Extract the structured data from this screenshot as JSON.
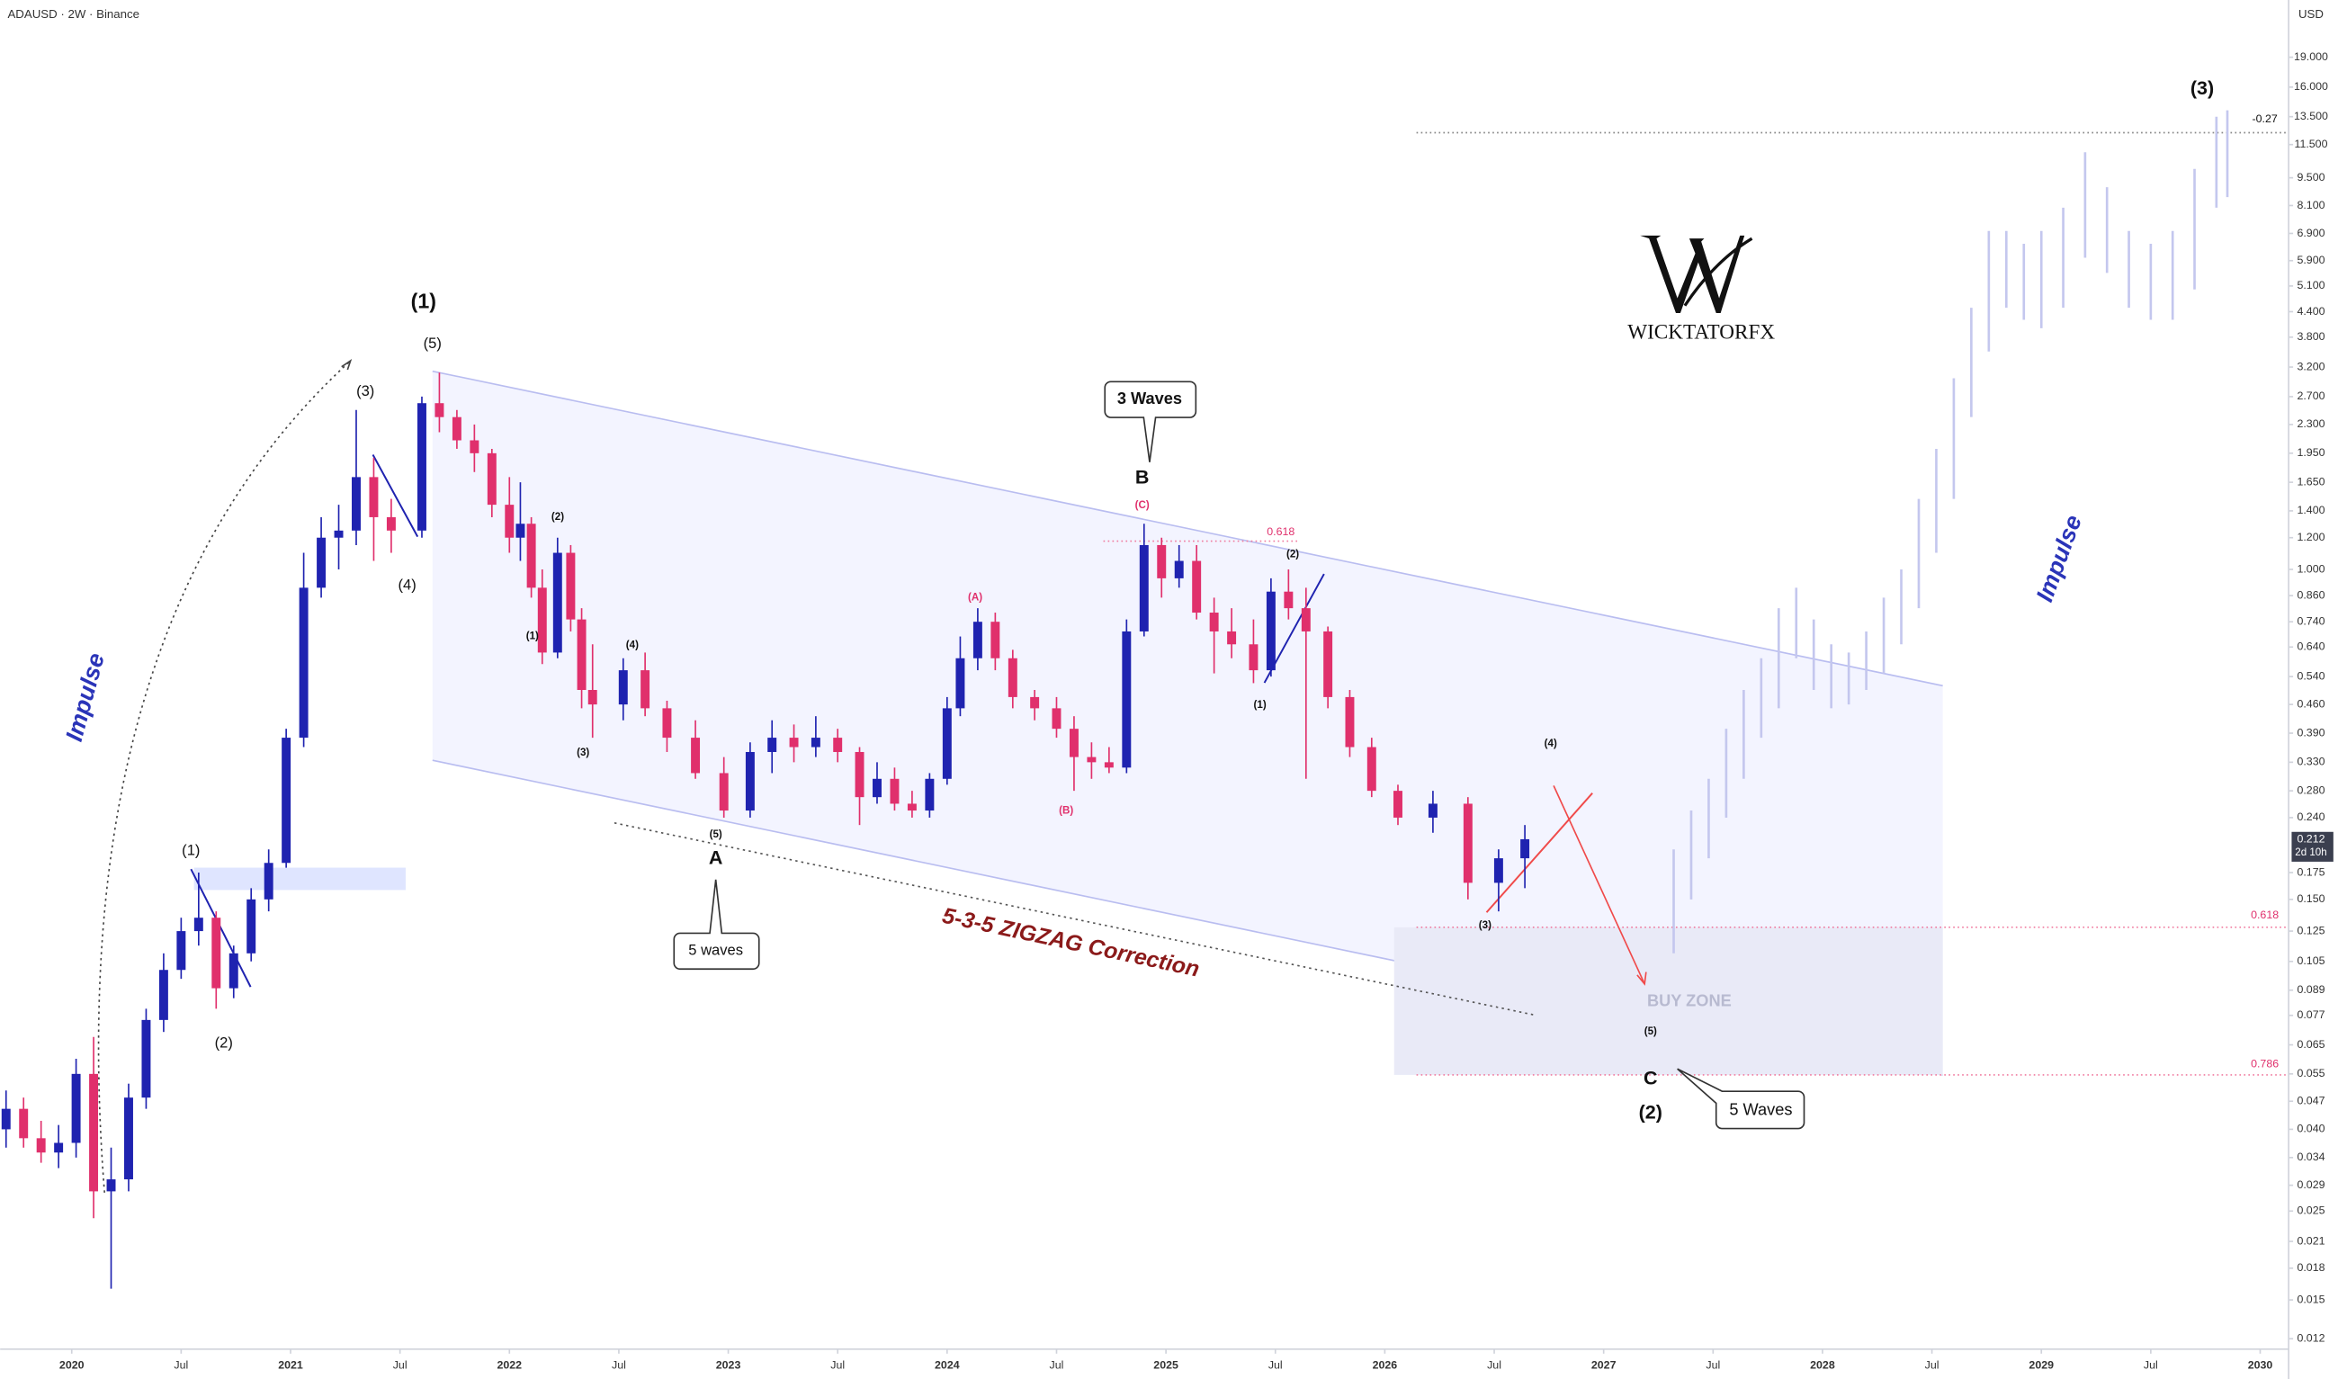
{
  "header": {
    "symbol": "ADAUSD · 2W · Binance",
    "currency": "USD",
    "last_price": "0.212",
    "countdown": "2d 10h"
  },
  "chart_data": {
    "type": "candlestick",
    "log_scale": true,
    "grid": false,
    "up_color": "#1f23b0",
    "down_color": "#e0306c",
    "xlim": [
      2019.673,
      2030.13
    ],
    "ylim": [
      0.0113,
      26.4
    ],
    "xticks": [
      2020,
      {
        "value": 2020.5,
        "label": "Jul"
      },
      2021,
      {
        "value": 2021.5,
        "label": "Jul"
      },
      2022,
      {
        "value": 2022.5,
        "label": "Jul"
      },
      2023,
      {
        "value": 2023.5,
        "label": "Jul"
      },
      2024,
      {
        "value": 2024.5,
        "label": "Jul"
      },
      2025,
      {
        "value": 2025.5,
        "label": "Jul"
      },
      2026,
      {
        "value": 2026.5,
        "label": "Jul"
      },
      2027,
      {
        "value": 2027.5,
        "label": "Jul"
      },
      2028,
      {
        "value": 2028.5,
        "label": "Jul"
      },
      2029,
      {
        "value": 2029.5,
        "label": "Jul"
      },
      2030
    ],
    "yticks": [
      {
        "value": 19,
        "label": "19.000"
      },
      {
        "value": 16,
        "label": "16.000"
      },
      {
        "value": 13.5,
        "label": "13.500"
      },
      {
        "value": 11.5,
        "label": "11.500"
      },
      {
        "value": 9.5,
        "label": "9.500"
      },
      {
        "value": 8.1,
        "label": "8.100"
      },
      {
        "value": 6.9,
        "label": "6.900"
      },
      {
        "value": 5.9,
        "label": "5.900"
      },
      {
        "value": 5.1,
        "label": "5.100"
      },
      {
        "value": 4.4,
        "label": "4.400"
      },
      {
        "value": 3.8,
        "label": "3.800"
      },
      {
        "value": 3.2,
        "label": "3.200"
      },
      {
        "value": 2.7,
        "label": "2.700"
      },
      {
        "value": 2.3,
        "label": "2.300"
      },
      {
        "value": 1.95,
        "label": "1.950"
      },
      {
        "value": 1.65,
        "label": "1.650"
      },
      {
        "value": 1.4,
        "label": "1.400"
      },
      {
        "value": 1.2,
        "label": "1.200"
      },
      {
        "value": 1,
        "label": "1.000"
      },
      {
        "value": 0.86,
        "label": "0.860"
      },
      {
        "value": 0.74,
        "label": "0.740"
      },
      {
        "value": 0.64,
        "label": "0.640"
      },
      {
        "value": 0.54,
        "label": "0.540"
      },
      {
        "value": 0.46,
        "label": "0.460"
      },
      {
        "value": 0.39,
        "label": "0.390"
      },
      {
        "value": 0.33,
        "label": "0.330"
      },
      {
        "value": 0.28,
        "label": "0.280"
      },
      {
        "value": 0.24,
        "label": "0.240"
      },
      0.175,
      {
        "value": 0.15,
        "label": "0.150"
      },
      0.125,
      0.105,
      0.089,
      0.077,
      0.065,
      0.055,
      0.047,
      {
        "value": 0.04,
        "label": "0.040"
      },
      0.034,
      0.029,
      0.025,
      0.021,
      0.018,
      0.015,
      0.012
    ],
    "x": [
      2019.7,
      2019.78,
      2019.86,
      2019.94,
      2020.02,
      2020.1,
      2020.18,
      2020.26,
      2020.34,
      2020.42,
      2020.5,
      2020.58,
      2020.66,
      2020.74,
      2020.82,
      2020.9,
      2020.98,
      2021.06,
      2021.14,
      2021.22,
      2021.3,
      2021.38,
      2021.46,
      2021.6,
      2021.68,
      2021.76,
      2021.84,
      2021.92,
      2022.0,
      2022.05,
      2022.1,
      2022.15,
      2022.22,
      2022.28,
      2022.33,
      2022.38,
      2022.52,
      2022.62,
      2022.72,
      2022.85,
      2022.98,
      2023.1,
      2023.2,
      2023.3,
      2023.4,
      2023.5,
      2023.6,
      2023.68,
      2023.76,
      2023.84,
      2023.92,
      2024.0,
      2024.06,
      2024.14,
      2024.22,
      2024.3,
      2024.4,
      2024.5,
      2024.58,
      2024.66,
      2024.74,
      2024.82,
      2024.9,
      2024.98,
      2025.06,
      2025.14,
      2025.22,
      2025.3,
      2025.4,
      2025.48,
      2025.56,
      2025.64,
      2025.74,
      2025.84,
      2025.94,
      2026.06,
      2026.22,
      2026.38,
      2026.52,
      2026.64
    ],
    "open": [
      0.04,
      0.045,
      0.038,
      0.035,
      0.037,
      0.055,
      0.028,
      0.03,
      0.048,
      0.075,
      0.1,
      0.125,
      0.135,
      0.09,
      0.11,
      0.15,
      0.185,
      0.38,
      0.9,
      1.2,
      1.25,
      1.7,
      1.35,
      1.25,
      2.6,
      2.4,
      2.1,
      1.95,
      1.45,
      1.2,
      1.3,
      0.9,
      0.62,
      1.1,
      0.75,
      0.5,
      0.46,
      0.56,
      0.45,
      0.38,
      0.31,
      0.25,
      0.35,
      0.38,
      0.36,
      0.38,
      0.35,
      0.27,
      0.3,
      0.26,
      0.25,
      0.3,
      0.45,
      0.6,
      0.74,
      0.6,
      0.48,
      0.45,
      0.4,
      0.34,
      0.33,
      0.32,
      0.7,
      1.15,
      0.95,
      1.05,
      0.78,
      0.7,
      0.65,
      0.56,
      0.88,
      0.8,
      0.7,
      0.48,
      0.36,
      0.28,
      0.24,
      0.26,
      0.165,
      0.19
    ],
    "high": [
      0.05,
      0.048,
      0.042,
      0.041,
      0.06,
      0.068,
      0.036,
      0.052,
      0.08,
      0.11,
      0.135,
      0.175,
      0.14,
      0.115,
      0.16,
      0.2,
      0.4,
      1.1,
      1.35,
      1.45,
      2.5,
      1.9,
      1.5,
      2.7,
      3.1,
      2.5,
      2.3,
      2.0,
      1.7,
      1.65,
      1.35,
      1.0,
      1.2,
      1.15,
      0.8,
      0.65,
      0.6,
      0.62,
      0.47,
      0.42,
      0.34,
      0.37,
      0.42,
      0.41,
      0.43,
      0.4,
      0.36,
      0.33,
      0.32,
      0.28,
      0.31,
      0.48,
      0.68,
      0.8,
      0.78,
      0.63,
      0.5,
      0.48,
      0.43,
      0.37,
      0.36,
      0.75,
      1.3,
      1.2,
      1.15,
      1.15,
      0.85,
      0.8,
      0.75,
      0.95,
      1.0,
      0.9,
      0.72,
      0.5,
      0.38,
      0.29,
      0.28,
      0.27,
      0.2,
      0.23
    ],
    "low": [
      0.036,
      0.036,
      0.033,
      0.032,
      0.034,
      0.024,
      0.016,
      0.028,
      0.045,
      0.07,
      0.095,
      0.115,
      0.08,
      0.085,
      0.105,
      0.14,
      0.18,
      0.36,
      0.85,
      1.0,
      1.15,
      1.05,
      1.1,
      1.2,
      2.2,
      2.0,
      1.75,
      1.35,
      1.1,
      1.05,
      0.85,
      0.58,
      0.6,
      0.7,
      0.45,
      0.38,
      0.42,
      0.43,
      0.35,
      0.3,
      0.24,
      0.24,
      0.31,
      0.33,
      0.34,
      0.33,
      0.23,
      0.26,
      0.25,
      0.24,
      0.24,
      0.29,
      0.43,
      0.56,
      0.56,
      0.45,
      0.42,
      0.38,
      0.28,
      0.3,
      0.31,
      0.31,
      0.68,
      0.85,
      0.9,
      0.75,
      0.55,
      0.6,
      0.52,
      0.54,
      0.75,
      0.3,
      0.45,
      0.34,
      0.27,
      0.23,
      0.22,
      0.15,
      0.14,
      0.16
    ],
    "close": [
      0.045,
      0.038,
      0.035,
      0.037,
      0.055,
      0.028,
      0.03,
      0.048,
      0.075,
      0.1,
      0.125,
      0.135,
      0.09,
      0.11,
      0.15,
      0.185,
      0.38,
      0.9,
      1.2,
      1.25,
      1.7,
      1.35,
      1.25,
      2.6,
      2.4,
      2.1,
      1.95,
      1.45,
      1.2,
      1.3,
      0.9,
      0.62,
      1.1,
      0.75,
      0.5,
      0.46,
      0.56,
      0.45,
      0.38,
      0.31,
      0.25,
      0.35,
      0.38,
      0.36,
      0.38,
      0.35,
      0.27,
      0.3,
      0.26,
      0.25,
      0.3,
      0.45,
      0.6,
      0.74,
      0.6,
      0.48,
      0.45,
      0.4,
      0.34,
      0.33,
      0.32,
      0.7,
      1.15,
      0.95,
      1.05,
      0.78,
      0.7,
      0.65,
      0.56,
      0.88,
      0.8,
      0.7,
      0.48,
      0.36,
      0.28,
      0.24,
      0.26,
      0.165,
      0.19,
      0.212
    ],
    "projection": {
      "color": "#c4c7ee",
      "x": [
        2027.32,
        2027.4,
        2027.48,
        2027.56,
        2027.64,
        2027.72,
        2027.8,
        2027.88,
        2027.96,
        2028.04,
        2028.12,
        2028.2,
        2028.28,
        2028.36,
        2028.44,
        2028.52,
        2028.6,
        2028.68,
        2028.76,
        2028.84,
        2028.92,
        2029.0,
        2029.1,
        2029.2,
        2029.3,
        2029.4,
        2029.5,
        2029.6,
        2029.7,
        2029.8,
        2029.85
      ],
      "high": [
        0.2,
        0.25,
        0.3,
        0.4,
        0.5,
        0.6,
        0.8,
        0.9,
        0.75,
        0.65,
        0.62,
        0.7,
        0.85,
        1.0,
        1.5,
        2.0,
        3.0,
        4.5,
        7.0,
        7.0,
        6.5,
        7.0,
        8.0,
        11.0,
        9.0,
        7.0,
        6.5,
        7.0,
        10.0,
        13.5,
        14.0
      ],
      "low": [
        0.11,
        0.15,
        0.19,
        0.24,
        0.3,
        0.38,
        0.45,
        0.6,
        0.5,
        0.45,
        0.46,
        0.5,
        0.55,
        0.65,
        0.8,
        1.1,
        1.5,
        2.4,
        3.5,
        4.5,
        4.2,
        4.0,
        4.5,
        6.0,
        5.5,
        4.5,
        4.2,
        4.2,
        5.0,
        8.0,
        8.5
      ]
    }
  },
  "annotations": [
    "(1)",
    "(5)",
    "(3)",
    "(4)",
    "(1)",
    "(2)",
    "Impulse",
    "(2)",
    "(1)",
    "(4)",
    "(3)",
    "(5)",
    "A",
    "5 waves",
    "5-3-5 ZIGZAG Correction",
    "(A)",
    "(B)",
    "(C)",
    "B",
    "3 Waves",
    "0.618",
    "(2)",
    "(1)",
    "(4)",
    "(3)",
    "BUY ZONE",
    "(5)",
    "C",
    "(2)",
    "5 Waves",
    "Impulse",
    "(3)",
    "-0.27",
    "0.618",
    "0.786",
    "WICKTATORFX"
  ]
}
